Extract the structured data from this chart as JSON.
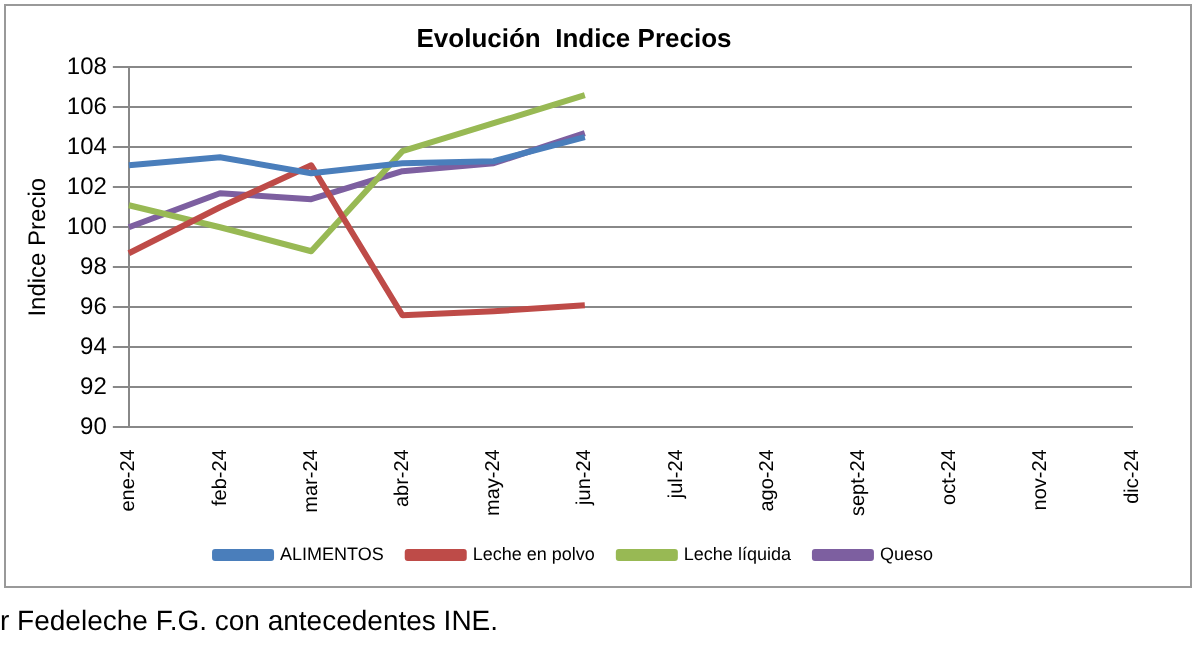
{
  "chart_data": {
    "type": "line",
    "title": "Evolución  Indice Precios",
    "ylabel": "Indice Precio",
    "categories": [
      "ene-24",
      "feb-24",
      "mar-24",
      "abr-24",
      "may-24",
      "jun-24",
      "jul-24",
      "ago-24",
      "sept-24",
      "oct-24",
      "nov-24",
      "dic-24"
    ],
    "series": [
      {
        "name": "ALIMENTOS",
        "color": "#4a7ebb",
        "values": [
          103.1,
          103.5,
          102.7,
          103.2,
          103.3,
          104.5,
          null,
          null,
          null,
          null,
          null,
          null
        ]
      },
      {
        "name": "Leche en polvo",
        "color": "#be4b48",
        "values": [
          98.7,
          101.0,
          103.1,
          95.6,
          95.8,
          96.1,
          null,
          null,
          null,
          null,
          null,
          null
        ]
      },
      {
        "name": "Leche líquida",
        "color": "#98b954",
        "values": [
          101.1,
          100.0,
          98.8,
          103.8,
          105.2,
          106.6,
          null,
          null,
          null,
          null,
          null,
          null
        ]
      },
      {
        "name": "Queso",
        "color": "#7d5fa0",
        "values": [
          100.0,
          101.7,
          101.4,
          102.8,
          103.2,
          104.7,
          null,
          null,
          null,
          null,
          null,
          null
        ]
      }
    ],
    "ylim": [
      90,
      108
    ],
    "yticks": [
      90,
      92,
      94,
      96,
      98,
      100,
      102,
      104,
      106,
      108
    ],
    "grid": "y",
    "legend": "bottom",
    "marker": "none",
    "line_style": "solid",
    "annotations": [
      "r Fedeleche F.G. con antecedentes INE."
    ]
  }
}
